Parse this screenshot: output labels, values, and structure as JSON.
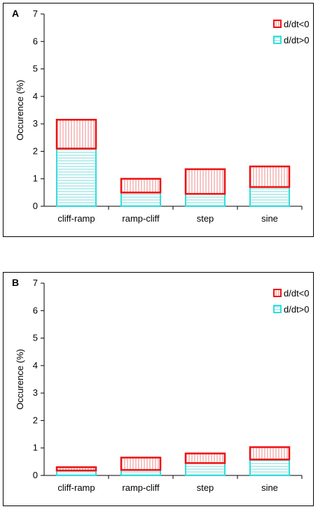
{
  "chart_data": [
    {
      "type": "bar",
      "stacked": true,
      "panel_label": "A",
      "categories": [
        "cliff-ramp",
        "ramp-cliff",
        "step",
        "sine"
      ],
      "series": [
        {
          "name": "d/dt>0",
          "values": [
            2.1,
            0.5,
            0.45,
            0.7
          ],
          "color": "#33dddd"
        },
        {
          "name": "d/dt<0",
          "values": [
            1.05,
            0.5,
            0.9,
            0.75
          ],
          "color": "#ee1111"
        }
      ],
      "ylabel": "Occurence (%)",
      "ylim": [
        0,
        7
      ],
      "yticks": [
        "0",
        "1",
        "2",
        "3",
        "4",
        "5",
        "6",
        "7"
      ],
      "grid": false,
      "legend_position": "top-right"
    },
    {
      "type": "bar",
      "stacked": true,
      "panel_label": "B",
      "categories": [
        "cliff-ramp",
        "ramp-cliff",
        "step",
        "sine"
      ],
      "series": [
        {
          "name": "d/dt>0",
          "values": [
            0.18,
            0.2,
            0.45,
            0.58
          ],
          "color": "#33dddd"
        },
        {
          "name": "d/dt<0",
          "values": [
            0.12,
            0.45,
            0.35,
            0.45
          ],
          "color": "#ee1111"
        }
      ],
      "ylabel": "Occurence (%)",
      "ylim": [
        0,
        7
      ],
      "yticks": [
        "0",
        "1",
        "2",
        "3",
        "4",
        "5",
        "6",
        "7"
      ],
      "grid": false,
      "legend_position": "top-right"
    }
  ]
}
